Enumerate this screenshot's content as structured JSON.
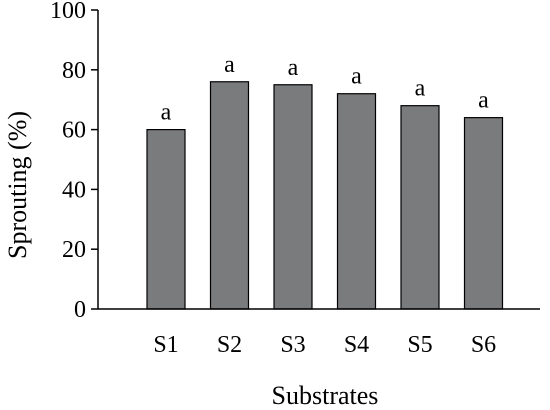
{
  "chart_data": {
    "type": "bar",
    "categories": [
      "S1",
      "S2",
      "S3",
      "S4",
      "S5",
      "S6"
    ],
    "values": [
      60,
      76,
      75,
      72,
      68,
      64
    ],
    "significance_letters": [
      "a",
      "a",
      "a",
      "a",
      "a",
      "a"
    ],
    "title": "",
    "xlabel": "Substrates",
    "ylabel": "Sprouting  (%)",
    "ylim": [
      0,
      100
    ],
    "yticks": [
      0,
      20,
      40,
      60,
      80,
      100
    ],
    "grid": false,
    "legend": "none",
    "bar_color": "#7a7b7d",
    "bar_edge_color": "#000000"
  }
}
